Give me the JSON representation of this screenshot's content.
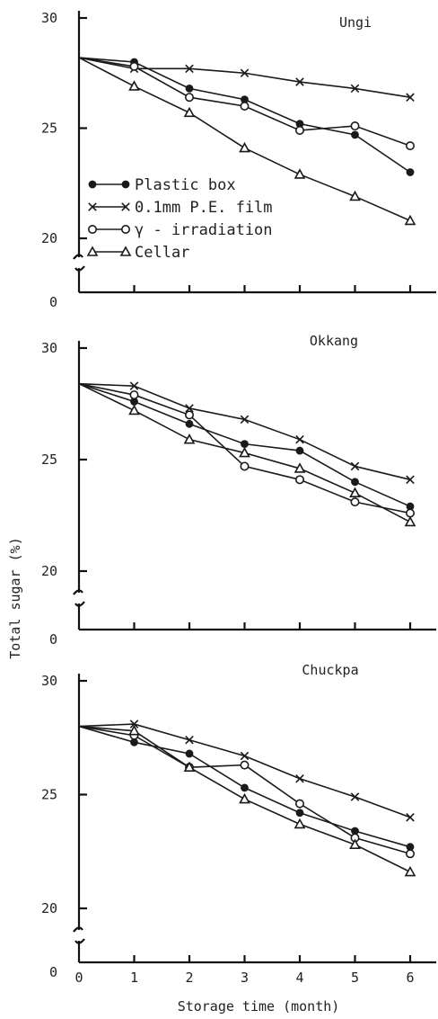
{
  "figure": {
    "ylabel": "Total sugar (%)",
    "xlabel": "Storage time (month)"
  },
  "chart_data": [
    {
      "type": "line",
      "title": "Ungi",
      "xlabel": "Storage time (month)",
      "ylabel": "Total sugar (%)",
      "x": [
        0,
        1,
        2,
        3,
        4,
        5,
        6
      ],
      "xticks": [
        "0",
        "1",
        "2",
        "3",
        "4",
        "5",
        "6"
      ],
      "ylim": [
        20,
        30
      ],
      "yticks": [
        "20",
        "25",
        "30"
      ],
      "y_zero_label": "0",
      "axis_break": true,
      "legend_position": "middle-left",
      "series": [
        {
          "name": "Plastic box",
          "marker": "filled-circle",
          "values": [
            28.2,
            28.0,
            26.8,
            26.3,
            25.2,
            24.7,
            23.0
          ]
        },
        {
          "name": "0.1mm P.E. film",
          "marker": "x",
          "values": [
            28.2,
            27.7,
            27.7,
            27.5,
            27.1,
            26.8,
            26.4
          ]
        },
        {
          "name": "γ - irradiation",
          "marker": "open-circle",
          "values": [
            28.2,
            27.8,
            26.4,
            26.0,
            24.9,
            25.1,
            24.2
          ]
        },
        {
          "name": "Cellar",
          "marker": "triangle",
          "values": [
            28.2,
            26.9,
            25.7,
            24.1,
            22.9,
            21.9,
            20.8
          ]
        }
      ]
    },
    {
      "type": "line",
      "title": "Okkang",
      "xlabel": "Storage time (month)",
      "ylabel": "Total sugar (%)",
      "x": [
        0,
        1,
        2,
        3,
        4,
        5,
        6
      ],
      "xticks": [
        "0",
        "1",
        "2",
        "3",
        "4",
        "5",
        "6"
      ],
      "ylim": [
        20,
        30
      ],
      "yticks": [
        "20",
        "25",
        "30"
      ],
      "y_zero_label": "0",
      "axis_break": true,
      "series": [
        {
          "name": "Plastic box",
          "marker": "filled-circle",
          "values": [
            28.4,
            27.6,
            26.6,
            25.7,
            25.4,
            24.0,
            22.9
          ]
        },
        {
          "name": "0.1mm P.E. film",
          "marker": "x",
          "values": [
            28.4,
            28.3,
            27.3,
            26.8,
            25.9,
            24.7,
            24.1
          ]
        },
        {
          "name": "γ - irradiation",
          "marker": "open-circle",
          "values": [
            28.4,
            27.9,
            27.0,
            24.7,
            24.1,
            23.1,
            22.6
          ]
        },
        {
          "name": "Cellar",
          "marker": "triangle",
          "values": [
            28.4,
            27.2,
            25.9,
            25.3,
            24.6,
            23.5,
            22.2
          ]
        }
      ]
    },
    {
      "type": "line",
      "title": "Chuckpa",
      "xlabel": "Storage time (month)",
      "ylabel": "Total sugar (%)",
      "x": [
        0,
        1,
        2,
        3,
        4,
        5,
        6
      ],
      "xticks": [
        "0",
        "1",
        "2",
        "3",
        "4",
        "5",
        "6"
      ],
      "ylim": [
        20,
        30
      ],
      "yticks": [
        "20",
        "25",
        "30"
      ],
      "y_zero_label": "0",
      "axis_break": true,
      "series": [
        {
          "name": "Plastic box",
          "marker": "filled-circle",
          "values": [
            28.0,
            27.3,
            26.8,
            25.3,
            24.2,
            23.4,
            22.7
          ]
        },
        {
          "name": "0.1mm P.E. film",
          "marker": "x",
          "values": [
            28.0,
            28.1,
            27.4,
            26.7,
            25.7,
            24.9,
            24.0
          ]
        },
        {
          "name": "γ - irradiation",
          "marker": "open-circle",
          "values": [
            28.0,
            27.6,
            26.2,
            26.3,
            24.6,
            23.1,
            22.4
          ]
        },
        {
          "name": "Cellar",
          "marker": "triangle",
          "values": [
            28.0,
            27.8,
            26.2,
            24.8,
            23.7,
            22.8,
            21.6
          ]
        }
      ]
    }
  ]
}
